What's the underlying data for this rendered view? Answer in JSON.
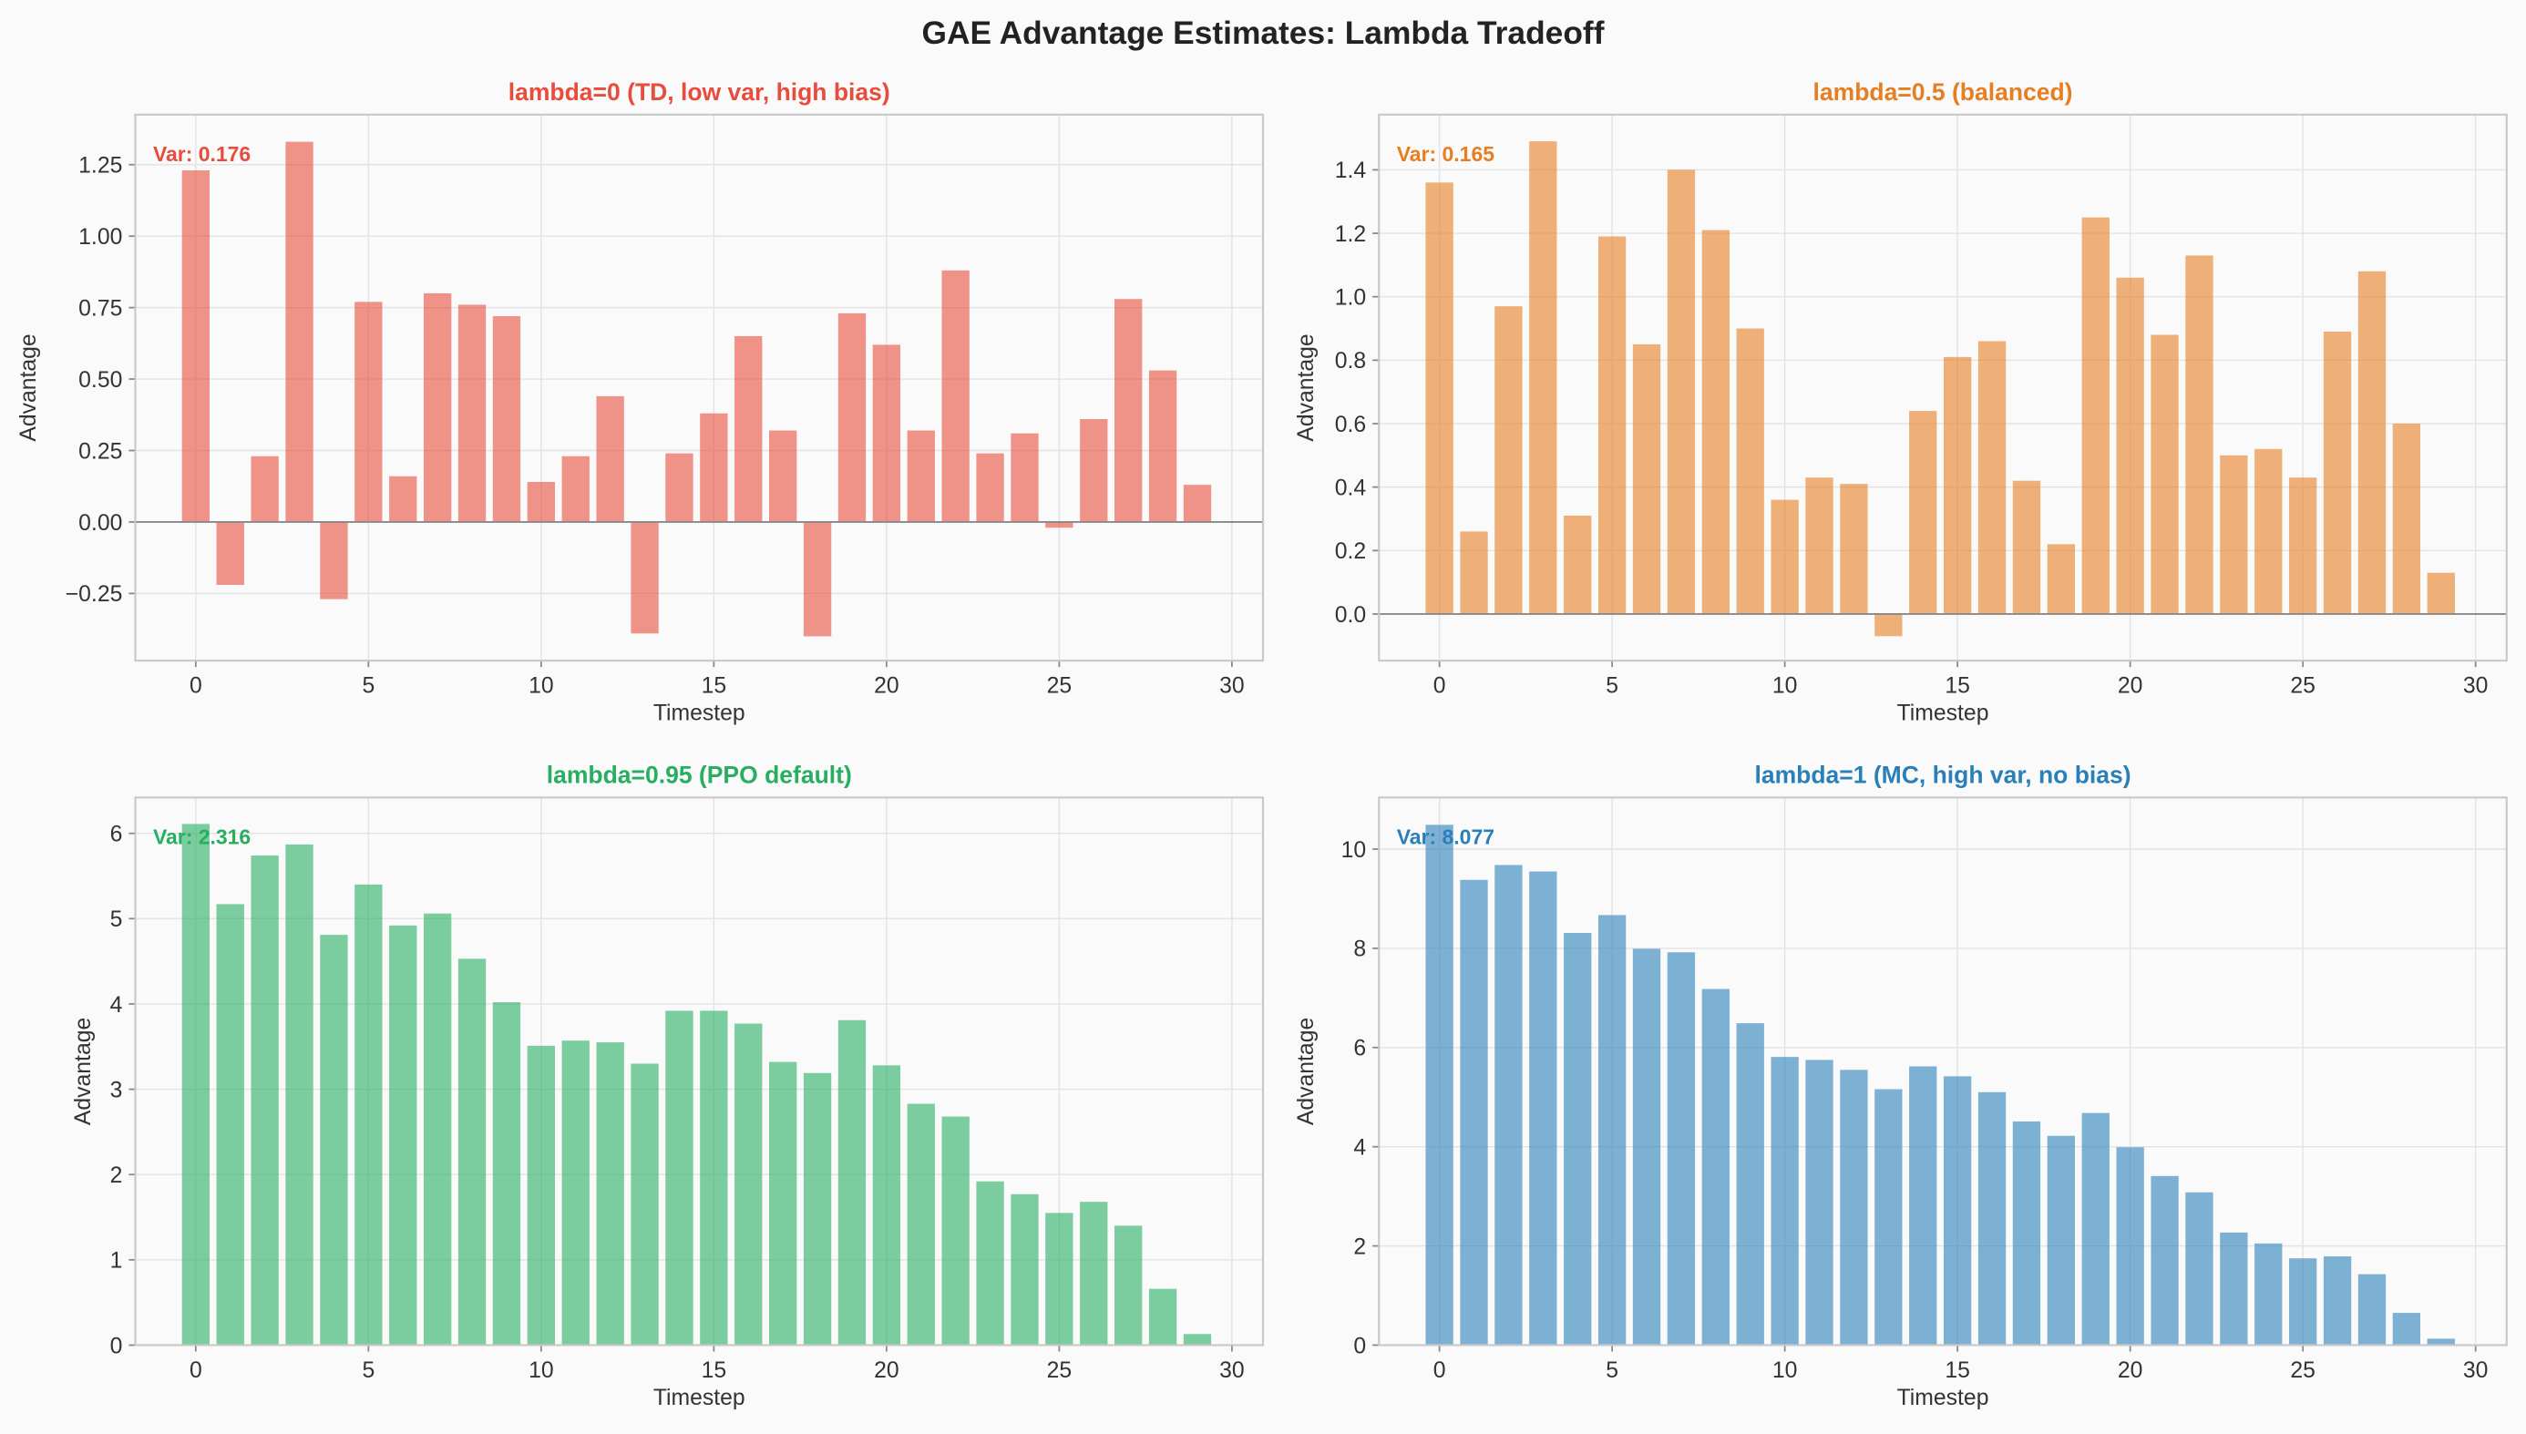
{
  "suptitle": "GAE Advantage Estimates: Lambda Tradeoff",
  "chart_data": [
    {
      "type": "bar",
      "title": "lambda=0 (TD, low var, high bias)",
      "annotation": "Var: 0.176",
      "color": "#e74c3c",
      "xlabel": "Timestep",
      "ylabel": "Advantage",
      "xlim": [
        -1.75,
        30.9
      ],
      "ylim": [
        -0.485,
        1.425
      ],
      "xticks": [
        0,
        5,
        10,
        15,
        20,
        25,
        30
      ],
      "yticks": [
        -0.25,
        0,
        0.25,
        0.5,
        0.75,
        1.0,
        1.25
      ],
      "ytick_labels": [
        "−0.25",
        "0.00",
        "0.25",
        "0.50",
        "0.75",
        "1.00",
        "1.25"
      ],
      "grid": true,
      "x": [
        0,
        1,
        2,
        3,
        4,
        5,
        6,
        7,
        8,
        9,
        10,
        11,
        12,
        13,
        14,
        15,
        16,
        17,
        18,
        19,
        20,
        21,
        22,
        23,
        24,
        25,
        26,
        27,
        28,
        29
      ],
      "values": [
        1.23,
        -0.22,
        0.23,
        1.33,
        -0.27,
        0.77,
        0.16,
        0.8,
        0.76,
        0.72,
        0.14,
        0.23,
        0.44,
        -0.39,
        0.24,
        0.38,
        0.65,
        0.32,
        -0.4,
        0.73,
        0.62,
        0.32,
        0.88,
        0.24,
        0.31,
        -0.02,
        0.36,
        0.78,
        0.53,
        0.13
      ]
    },
    {
      "type": "bar",
      "title": "lambda=0.5 (balanced)",
      "annotation": "Var: 0.165",
      "color": "#e67e22",
      "xlabel": "Timestep",
      "ylabel": "Advantage",
      "xlim": [
        -1.75,
        30.9
      ],
      "ylim": [
        -0.147,
        1.574
      ],
      "xticks": [
        0,
        5,
        10,
        15,
        20,
        25,
        30
      ],
      "yticks": [
        0,
        0.2,
        0.4,
        0.6,
        0.8,
        1.0,
        1.2,
        1.4
      ],
      "ytick_labels": [
        "0.0",
        "0.2",
        "0.4",
        "0.6",
        "0.8",
        "1.0",
        "1.2",
        "1.4"
      ],
      "grid": true,
      "x": [
        0,
        1,
        2,
        3,
        4,
        5,
        6,
        7,
        8,
        9,
        10,
        11,
        12,
        13,
        14,
        15,
        16,
        17,
        18,
        19,
        20,
        21,
        22,
        23,
        24,
        25,
        26,
        27,
        28,
        29
      ],
      "values": [
        1.36,
        0.26,
        0.97,
        1.49,
        0.31,
        1.19,
        0.85,
        1.4,
        1.21,
        0.9,
        0.36,
        0.43,
        0.41,
        -0.07,
        0.64,
        0.81,
        0.86,
        0.42,
        0.22,
        1.25,
        1.06,
        0.88,
        1.13,
        0.5,
        0.52,
        0.43,
        0.89,
        1.08,
        0.6,
        0.13
      ]
    },
    {
      "type": "bar",
      "title": "lambda=0.95 (PPO default)",
      "annotation": "Var: 2.316",
      "color": "#27ae60",
      "xlabel": "Timestep",
      "ylabel": "Advantage",
      "xlim": [
        -1.75,
        30.9
      ],
      "ylim": [
        0,
        6.42
      ],
      "xticks": [
        0,
        5,
        10,
        15,
        20,
        25,
        30
      ],
      "yticks": [
        0,
        1,
        2,
        3,
        4,
        5,
        6
      ],
      "ytick_labels": [
        "0",
        "1",
        "2",
        "3",
        "4",
        "5",
        "6"
      ],
      "grid": true,
      "x": [
        0,
        1,
        2,
        3,
        4,
        5,
        6,
        7,
        8,
        9,
        10,
        11,
        12,
        13,
        14,
        15,
        16,
        17,
        18,
        19,
        20,
        21,
        22,
        23,
        24,
        25,
        26,
        27,
        28,
        29
      ],
      "values": [
        6.11,
        5.17,
        5.74,
        5.87,
        4.81,
        5.4,
        4.92,
        5.06,
        4.53,
        4.02,
        3.51,
        3.57,
        3.55,
        3.3,
        3.92,
        3.92,
        3.77,
        3.32,
        3.19,
        3.81,
        3.28,
        2.83,
        2.68,
        1.92,
        1.77,
        1.55,
        1.68,
        1.4,
        0.66,
        0.13
      ]
    },
    {
      "type": "bar",
      "title": "lambda=1 (MC, high var, no bias)",
      "annotation": "Var: 8.077",
      "color": "#2980b9",
      "xlabel": "Timestep",
      "ylabel": "Advantage",
      "xlim": [
        -1.75,
        30.9
      ],
      "ylim": [
        0,
        11.04
      ],
      "xticks": [
        0,
        5,
        10,
        15,
        20,
        25,
        30
      ],
      "yticks": [
        0,
        2,
        4,
        6,
        8,
        10
      ],
      "ytick_labels": [
        "0",
        "2",
        "4",
        "6",
        "8",
        "10"
      ],
      "grid": true,
      "x": [
        0,
        1,
        2,
        3,
        4,
        5,
        6,
        7,
        8,
        9,
        10,
        11,
        12,
        13,
        14,
        15,
        16,
        17,
        18,
        19,
        20,
        21,
        22,
        23,
        24,
        25,
        26,
        27,
        28,
        29
      ],
      "values": [
        10.49,
        9.38,
        9.68,
        9.55,
        8.31,
        8.67,
        7.99,
        7.92,
        7.18,
        6.49,
        5.81,
        5.75,
        5.55,
        5.16,
        5.62,
        5.42,
        5.1,
        4.51,
        4.22,
        4.68,
        3.99,
        3.41,
        3.08,
        2.27,
        2.05,
        1.75,
        1.79,
        1.43,
        0.65,
        0.13
      ]
    }
  ]
}
